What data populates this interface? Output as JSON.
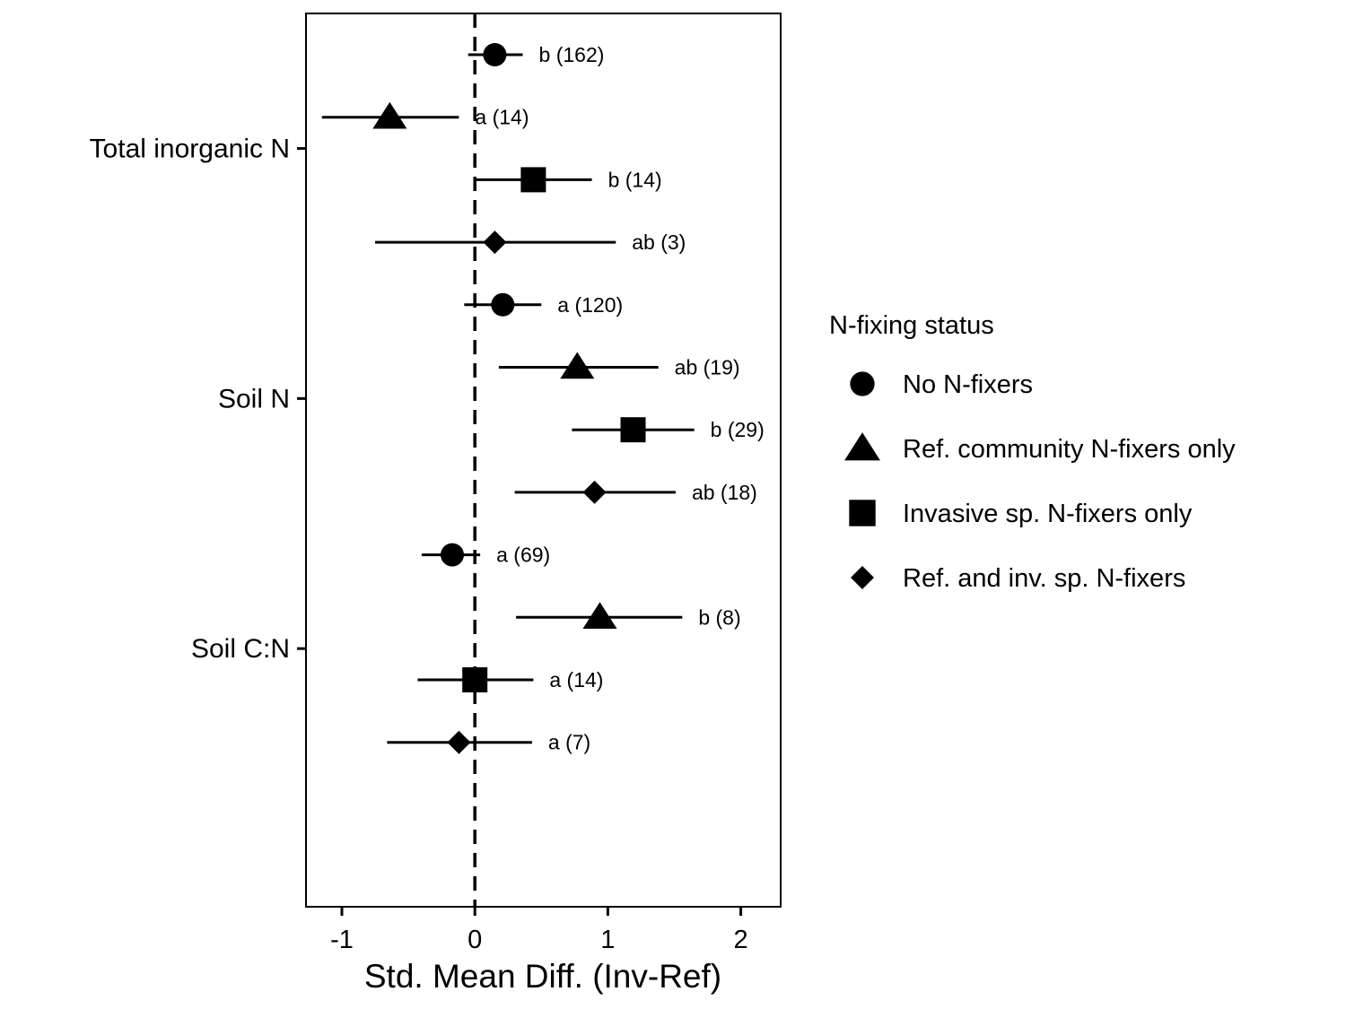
{
  "chart_data": {
    "type": "scatter",
    "subtype": "forest-plot",
    "title": "",
    "xlabel": "Std. Mean Diff. (Inv-Ref)",
    "ylabel": "",
    "xlim": [
      -1.27,
      2.3
    ],
    "xticks": [
      "-1",
      "0",
      "1",
      "2"
    ],
    "reference_line": {
      "x": 0,
      "style": "dashed"
    },
    "grid": false,
    "categories": [
      "Total inorganic N",
      "Soil N",
      "Soil C:N"
    ],
    "legend": {
      "title": "N-fixing status",
      "position": "right",
      "items": [
        {
          "label": "No N-fixers",
          "shape": "circle"
        },
        {
          "label": "Ref. community N-fixers only",
          "shape": "triangle"
        },
        {
          "label": "Invasive sp. N-fixers only",
          "shape": "square"
        },
        {
          "label": "Ref. and inv. sp. N-fixers",
          "shape": "diamond"
        }
      ]
    },
    "points": [
      {
        "category": "Total inorganic N",
        "group": 0,
        "mean": 0.15,
        "low": -0.05,
        "high": 0.36,
        "label": "b (162)"
      },
      {
        "category": "Total inorganic N",
        "group": 1,
        "mean": -0.64,
        "low": -1.15,
        "high": -0.12,
        "label": "a (14)"
      },
      {
        "category": "Total inorganic N",
        "group": 2,
        "mean": 0.44,
        "low": 0.0,
        "high": 0.88,
        "label": "b (14)"
      },
      {
        "category": "Total inorganic N",
        "group": 3,
        "mean": 0.15,
        "low": -0.75,
        "high": 1.06,
        "label": "ab (3)"
      },
      {
        "category": "Soil N",
        "group": 0,
        "mean": 0.21,
        "low": -0.08,
        "high": 0.5,
        "label": "a (120)"
      },
      {
        "category": "Soil N",
        "group": 1,
        "mean": 0.77,
        "low": 0.18,
        "high": 1.38,
        "label": "ab (19)"
      },
      {
        "category": "Soil N",
        "group": 2,
        "mean": 1.19,
        "low": 0.73,
        "high": 1.65,
        "label": "b (29)"
      },
      {
        "category": "Soil N",
        "group": 3,
        "mean": 0.9,
        "low": 0.3,
        "high": 1.51,
        "label": "ab (18)"
      },
      {
        "category": "Soil C:N",
        "group": 0,
        "mean": -0.17,
        "low": -0.4,
        "high": 0.04,
        "label": "a (69)"
      },
      {
        "category": "Soil C:N",
        "group": 1,
        "mean": 0.94,
        "low": 0.31,
        "high": 1.56,
        "label": "b (8)"
      },
      {
        "category": "Soil C:N",
        "group": 2,
        "mean": 0.0,
        "low": -0.43,
        "high": 0.44,
        "label": "a (14)"
      },
      {
        "category": "Soil C:N",
        "group": 3,
        "mean": -0.12,
        "low": -0.66,
        "high": 0.43,
        "label": "a (7)"
      }
    ]
  }
}
